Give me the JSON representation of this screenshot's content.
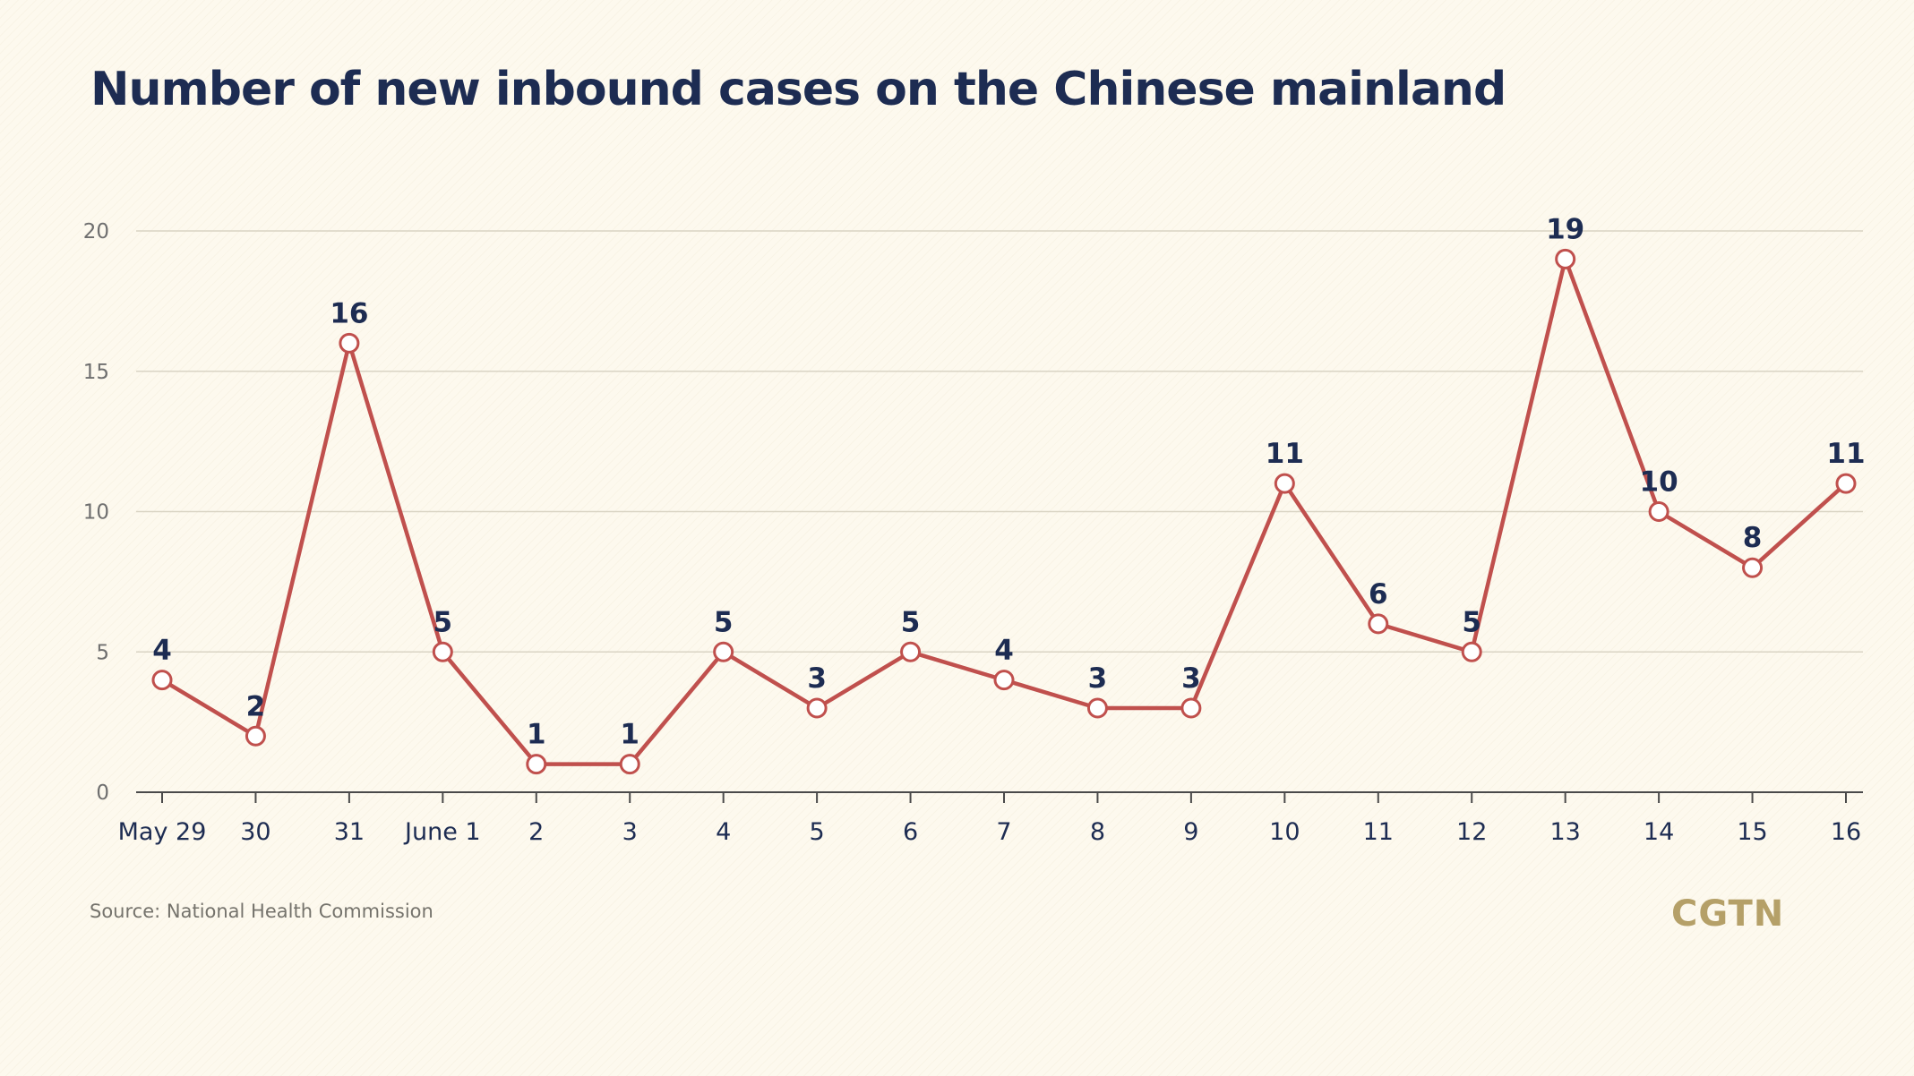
{
  "chart_data": {
    "type": "line",
    "title": "Number of new inbound cases on the Chinese mainland",
    "categories": [
      "May 29",
      "30",
      "31",
      "June 1",
      "2",
      "3",
      "4",
      "5",
      "6",
      "7",
      "8",
      "9",
      "10",
      "11",
      "12",
      "13",
      "14",
      "15",
      "16"
    ],
    "series": [
      {
        "name": "New inbound cases",
        "color": "#c0504d",
        "values": [
          4,
          2,
          16,
          5,
          1,
          1,
          5,
          3,
          5,
          4,
          3,
          3,
          11,
          6,
          5,
          19,
          10,
          8,
          11
        ]
      }
    ],
    "y_ticks": [
      0,
      5,
      10,
      15,
      20
    ],
    "ylim": [
      0,
      20
    ],
    "xlabel": "",
    "ylabel": "",
    "grid": true,
    "legend": "none",
    "colors": {
      "title": "#1d2c52",
      "line": "#c0504d",
      "grid": "#d9d4c4",
      "brand": "#b5a068"
    }
  },
  "footer": {
    "source": "Source: National Health Commission",
    "brand": "CGTN"
  }
}
